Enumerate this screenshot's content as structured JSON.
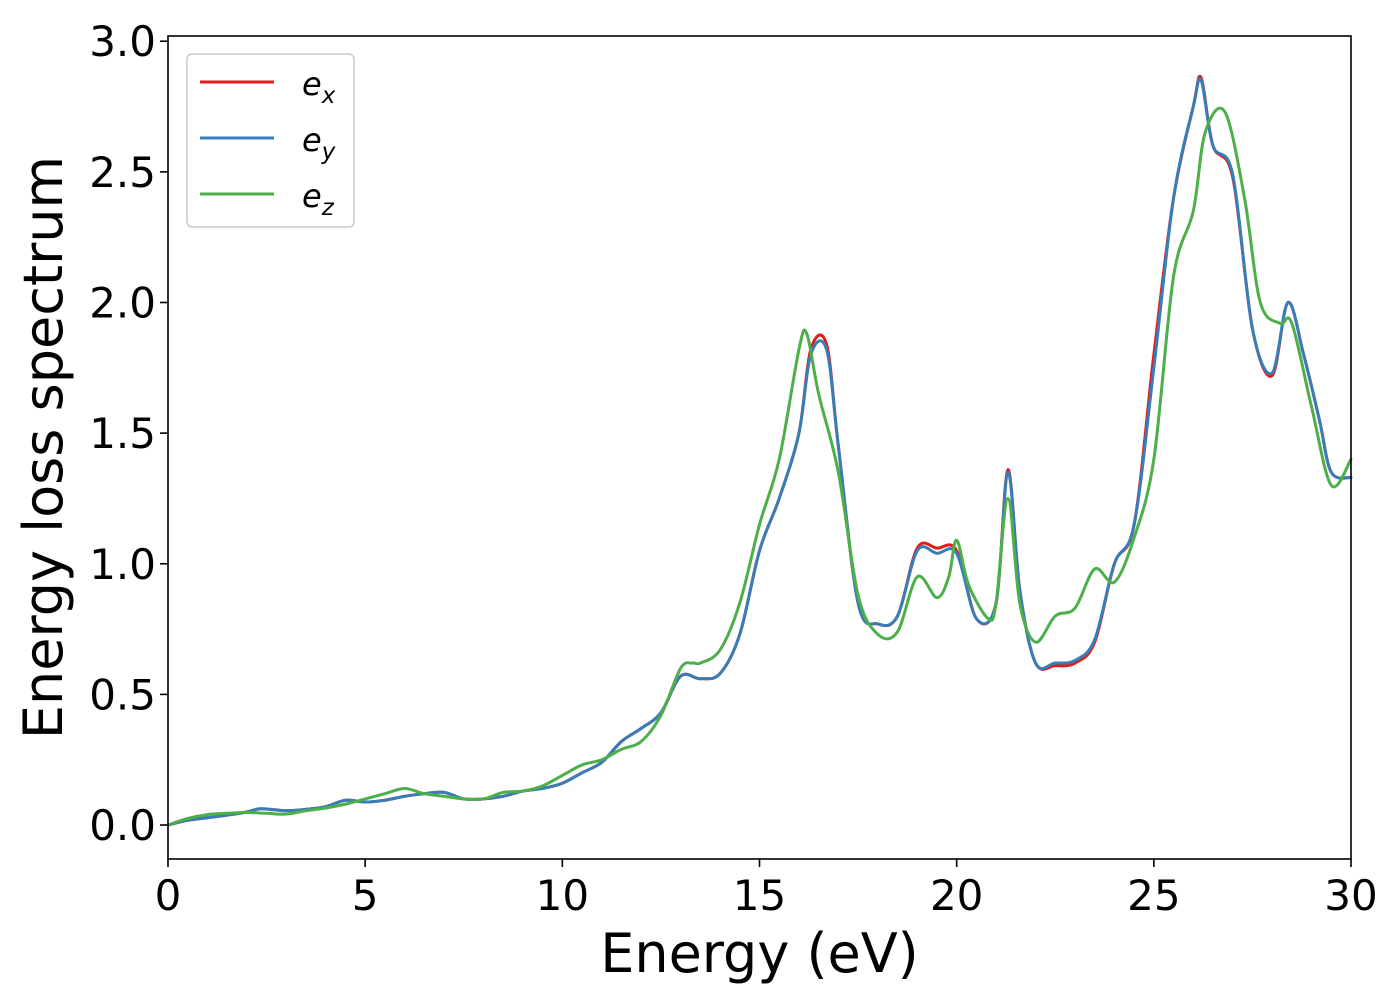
{
  "chart_data": {
    "type": "line",
    "xlabel": "Energy (eV)",
    "ylabel": "Energy loss spectrum",
    "xlim": [
      0,
      30
    ],
    "ylim": [
      -0.13,
      3.02
    ],
    "xticks": [
      "0",
      "5",
      "10",
      "15",
      "20",
      "25",
      "30"
    ],
    "yticks": [
      "0.0",
      "0.5",
      "1.0",
      "1.5",
      "2.0",
      "2.5",
      "3.0"
    ],
    "grid": false,
    "legend_position": "top-left",
    "series": [
      {
        "name": "e",
        "subscript": "x",
        "color": "#e41a1c",
        "points": [
          [
            0,
            0
          ],
          [
            0.5,
            0.018
          ],
          [
            1,
            0.028
          ],
          [
            1.5,
            0.038
          ],
          [
            2,
            0.05
          ],
          [
            2.3,
            0.062
          ],
          [
            2.6,
            0.06
          ],
          [
            3,
            0.055
          ],
          [
            3.5,
            0.06
          ],
          [
            4,
            0.07
          ],
          [
            4.5,
            0.095
          ],
          [
            5,
            0.088
          ],
          [
            5.5,
            0.095
          ],
          [
            6,
            0.11
          ],
          [
            6.5,
            0.12
          ],
          [
            7,
            0.125
          ],
          [
            7.5,
            0.1
          ],
          [
            8,
            0.1
          ],
          [
            8.5,
            0.11
          ],
          [
            9,
            0.13
          ],
          [
            9.5,
            0.14
          ],
          [
            10,
            0.16
          ],
          [
            10.5,
            0.2
          ],
          [
            11,
            0.24
          ],
          [
            11.5,
            0.32
          ],
          [
            12,
            0.37
          ],
          [
            12.5,
            0.43
          ],
          [
            13,
            0.57
          ],
          [
            13.5,
            0.56
          ],
          [
            14,
            0.58
          ],
          [
            14.5,
            0.73
          ],
          [
            15,
            1.05
          ],
          [
            15.5,
            1.25
          ],
          [
            16,
            1.5
          ],
          [
            16.3,
            1.82
          ],
          [
            16.7,
            1.84
          ],
          [
            17,
            1.45
          ],
          [
            17.5,
            0.85
          ],
          [
            18,
            0.77
          ],
          [
            18.5,
            0.8
          ],
          [
            19,
            1.06
          ],
          [
            19.5,
            1.06
          ],
          [
            20,
            1.05
          ],
          [
            20.5,
            0.79
          ],
          [
            21,
            0.85
          ],
          [
            21.3,
            1.36
          ],
          [
            21.6,
            0.9
          ],
          [
            22,
            0.62
          ],
          [
            22.5,
            0.61
          ],
          [
            23,
            0.62
          ],
          [
            23.5,
            0.7
          ],
          [
            24,
            1.0
          ],
          [
            24.5,
            1.15
          ],
          [
            25,
            1.8
          ],
          [
            25.5,
            2.4
          ],
          [
            26,
            2.75
          ],
          [
            26.2,
            2.86
          ],
          [
            26.5,
            2.6
          ],
          [
            27,
            2.48
          ],
          [
            27.5,
            1.9
          ],
          [
            28,
            1.72
          ],
          [
            28.4,
            2.0
          ],
          [
            28.8,
            1.8
          ],
          [
            29.2,
            1.55
          ],
          [
            29.5,
            1.35
          ],
          [
            30,
            1.33
          ]
        ]
      },
      {
        "name": "e",
        "subscript": "y",
        "color": "#377eb8",
        "points": [
          [
            0,
            0
          ],
          [
            0.5,
            0.018
          ],
          [
            1,
            0.028
          ],
          [
            1.5,
            0.038
          ],
          [
            2,
            0.05
          ],
          [
            2.3,
            0.062
          ],
          [
            2.6,
            0.06
          ],
          [
            3,
            0.055
          ],
          [
            3.5,
            0.06
          ],
          [
            4,
            0.07
          ],
          [
            4.5,
            0.095
          ],
          [
            5,
            0.088
          ],
          [
            5.5,
            0.095
          ],
          [
            6,
            0.11
          ],
          [
            6.5,
            0.12
          ],
          [
            7,
            0.125
          ],
          [
            7.5,
            0.1
          ],
          [
            8,
            0.1
          ],
          [
            8.5,
            0.11
          ],
          [
            9,
            0.13
          ],
          [
            9.5,
            0.14
          ],
          [
            10,
            0.16
          ],
          [
            10.5,
            0.2
          ],
          [
            11,
            0.24
          ],
          [
            11.5,
            0.32
          ],
          [
            12,
            0.37
          ],
          [
            12.5,
            0.43
          ],
          [
            13,
            0.57
          ],
          [
            13.5,
            0.56
          ],
          [
            14,
            0.58
          ],
          [
            14.5,
            0.73
          ],
          [
            15,
            1.05
          ],
          [
            15.5,
            1.25
          ],
          [
            16,
            1.5
          ],
          [
            16.3,
            1.8
          ],
          [
            16.7,
            1.82
          ],
          [
            17,
            1.45
          ],
          [
            17.5,
            0.85
          ],
          [
            18,
            0.77
          ],
          [
            18.5,
            0.8
          ],
          [
            19,
            1.05
          ],
          [
            19.5,
            1.04
          ],
          [
            20,
            1.04
          ],
          [
            20.5,
            0.79
          ],
          [
            21,
            0.85
          ],
          [
            21.3,
            1.35
          ],
          [
            21.6,
            0.9
          ],
          [
            22,
            0.62
          ],
          [
            22.5,
            0.62
          ],
          [
            23,
            0.63
          ],
          [
            23.5,
            0.71
          ],
          [
            24,
            1.0
          ],
          [
            24.5,
            1.15
          ],
          [
            25,
            1.75
          ],
          [
            25.5,
            2.4
          ],
          [
            26,
            2.75
          ],
          [
            26.2,
            2.85
          ],
          [
            26.5,
            2.6
          ],
          [
            27,
            2.49
          ],
          [
            27.5,
            1.9
          ],
          [
            28,
            1.73
          ],
          [
            28.4,
            2.0
          ],
          [
            28.8,
            1.8
          ],
          [
            29.2,
            1.55
          ],
          [
            29.5,
            1.35
          ],
          [
            30,
            1.33
          ]
        ]
      },
      {
        "name": "e",
        "subscript": "z",
        "color": "#4daf4a",
        "points": [
          [
            0,
            0
          ],
          [
            0.5,
            0.025
          ],
          [
            1,
            0.04
          ],
          [
            1.5,
            0.045
          ],
          [
            2,
            0.048
          ],
          [
            2.5,
            0.045
          ],
          [
            3,
            0.042
          ],
          [
            3.5,
            0.055
          ],
          [
            4,
            0.065
          ],
          [
            4.5,
            0.08
          ],
          [
            5,
            0.1
          ],
          [
            5.5,
            0.12
          ],
          [
            6,
            0.14
          ],
          [
            6.5,
            0.12
          ],
          [
            7,
            0.11
          ],
          [
            7.5,
            0.1
          ],
          [
            8,
            0.1
          ],
          [
            8.5,
            0.125
          ],
          [
            9,
            0.13
          ],
          [
            9.5,
            0.15
          ],
          [
            10,
            0.19
          ],
          [
            10.5,
            0.23
          ],
          [
            11,
            0.25
          ],
          [
            11.5,
            0.29
          ],
          [
            12,
            0.32
          ],
          [
            12.5,
            0.42
          ],
          [
            13,
            0.6
          ],
          [
            13.3,
            0.62
          ],
          [
            13.5,
            0.62
          ],
          [
            14,
            0.67
          ],
          [
            14.5,
            0.85
          ],
          [
            15,
            1.15
          ],
          [
            15.5,
            1.4
          ],
          [
            16,
            1.82
          ],
          [
            16.2,
            1.88
          ],
          [
            16.5,
            1.65
          ],
          [
            17,
            1.35
          ],
          [
            17.5,
            0.88
          ],
          [
            18,
            0.73
          ],
          [
            18.5,
            0.74
          ],
          [
            19,
            0.95
          ],
          [
            19.5,
            0.87
          ],
          [
            19.8,
            0.95
          ],
          [
            20,
            1.09
          ],
          [
            20.3,
            0.92
          ],
          [
            20.8,
            0.79
          ],
          [
            21,
            0.85
          ],
          [
            21.3,
            1.25
          ],
          [
            21.6,
            0.85
          ],
          [
            22,
            0.7
          ],
          [
            22.5,
            0.8
          ],
          [
            23,
            0.83
          ],
          [
            23.5,
            0.98
          ],
          [
            24,
            0.93
          ],
          [
            24.5,
            1.1
          ],
          [
            25,
            1.4
          ],
          [
            25.5,
            2.1
          ],
          [
            26,
            2.35
          ],
          [
            26.3,
            2.65
          ],
          [
            26.8,
            2.73
          ],
          [
            27.3,
            2.4
          ],
          [
            27.7,
            2.0
          ],
          [
            28.2,
            1.92
          ],
          [
            28.5,
            1.92
          ],
          [
            29,
            1.6
          ],
          [
            29.5,
            1.3
          ],
          [
            30,
            1.4
          ]
        ]
      }
    ]
  }
}
